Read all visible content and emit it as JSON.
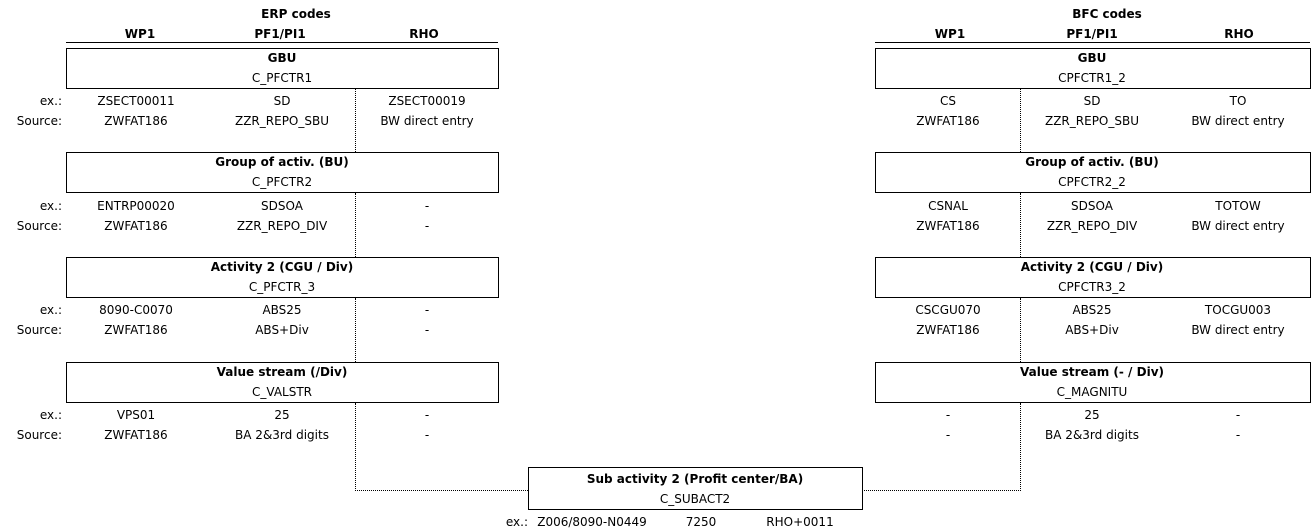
{
  "erp": {
    "section_title": "ERP codes",
    "col_wp1": "WP1",
    "col_pf": "PF1/PI1",
    "col_rho": "RHO",
    "blocks": [
      {
        "title": "GBU",
        "code": "C_PFCTR1",
        "ex_label": "ex.:",
        "ex_wp1": "ZSECT00011",
        "ex_pf": "SD",
        "ex_rho": "ZSECT00019",
        "src_label": "Source:",
        "src_wp1": "ZWFAT186",
        "src_pf": "ZZR_REPO_SBU",
        "src_rho": "BW direct entry"
      },
      {
        "title": "Group of activ. (BU)",
        "code": "C_PFCTR2",
        "ex_label": "ex.:",
        "ex_wp1": "ENTRP00020",
        "ex_pf": "SDSOA",
        "ex_rho": "-",
        "src_label": "Source:",
        "src_wp1": "ZWFAT186",
        "src_pf": "ZZR_REPO_DIV",
        "src_rho": "-"
      },
      {
        "title": "Activity 2 (CGU / Div)",
        "code": "C_PFCTR_3",
        "ex_label": "ex.:",
        "ex_wp1": "8090-C0070",
        "ex_pf": "ABS25",
        "ex_rho": "-",
        "src_label": "Source:",
        "src_wp1": "ZWFAT186",
        "src_pf": "ABS+Div",
        "src_rho": "-"
      },
      {
        "title": "Value stream (/Div)",
        "code": "C_VALSTR",
        "ex_label": "ex.:",
        "ex_wp1": "VPS01",
        "ex_pf": "25",
        "ex_rho": "-",
        "src_label": "Source:",
        "src_wp1": "ZWFAT186",
        "src_pf": "BA 2&3rd digits",
        "src_rho": "-"
      }
    ]
  },
  "bfc": {
    "section_title": "BFC codes",
    "col_wp1": "WP1",
    "col_pf": "PF1/PI1",
    "col_rho": "RHO",
    "blocks": [
      {
        "title": "GBU",
        "code": "CPFCTR1_2",
        "ex_wp1": "CS",
        "ex_pf": "SD",
        "ex_rho": "TO",
        "src_wp1": "ZWFAT186",
        "src_pf": "ZZR_REPO_SBU",
        "src_rho": "BW direct entry"
      },
      {
        "title": "Group of activ. (BU)",
        "code": "CPFCTR2_2",
        "ex_wp1": "CSNAL",
        "ex_pf": "SDSOA",
        "ex_rho": "TOTOW",
        "src_wp1": "ZWFAT186",
        "src_pf": "ZZR_REPO_DIV",
        "src_rho": "BW direct entry"
      },
      {
        "title": "Activity 2 (CGU / Div)",
        "code": "CPFCTR3_2",
        "ex_wp1": "CSCGU070",
        "ex_pf": "ABS25",
        "ex_rho": "TOCGU003",
        "src_wp1": "ZWFAT186",
        "src_pf": "ABS+Div",
        "src_rho": "BW direct entry"
      },
      {
        "title": "Value stream (- / Div)",
        "code": "C_MAGNITU",
        "ex_wp1": "-",
        "ex_pf": "25",
        "ex_rho": "-",
        "src_wp1": "-",
        "src_pf": "BA 2&3rd digits",
        "src_rho": "-"
      }
    ]
  },
  "sub": {
    "title": "Sub activity 2 (Profit center/BA)",
    "code": "C_SUBACT2",
    "ex_label": "ex.:",
    "ex_wp1": "Z006/8090-N0449",
    "ex_pf": "7250",
    "ex_rho": "RHO+0011"
  }
}
